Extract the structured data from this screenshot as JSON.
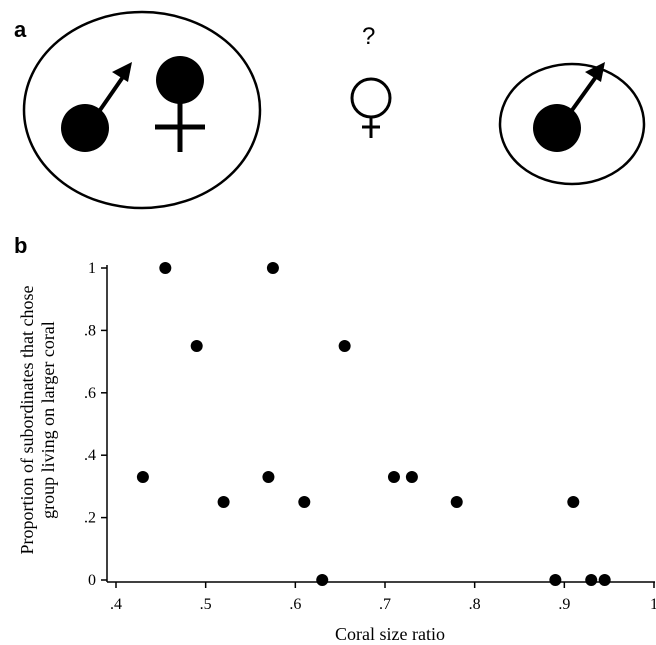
{
  "panel_a": {
    "label": "a",
    "question_mark": "?",
    "left_group": [
      "male-symbol",
      "female-symbol"
    ],
    "center": [
      "female-symbol"
    ],
    "right_group": [
      "male-symbol"
    ]
  },
  "panel_b": {
    "label": "b"
  },
  "chart_data": {
    "type": "scatter",
    "title": "",
    "xlabel": "Coral size ratio",
    "ylabel": "Proportion of subordinates that chose group living on larger coral",
    "ylabel_lines": [
      "Proportion of subordinates that chose",
      "group living on larger coral"
    ],
    "xlim": [
      0.4,
      1.0
    ],
    "ylim": [
      0,
      1
    ],
    "xticks": [
      {
        "v": 0.4,
        "label": ".4"
      },
      {
        "v": 0.5,
        "label": ".5"
      },
      {
        "v": 0.6,
        "label": ".6"
      },
      {
        "v": 0.7,
        "label": ".7"
      },
      {
        "v": 0.8,
        "label": ".8"
      },
      {
        "v": 0.9,
        "label": ".9"
      },
      {
        "v": 1.0,
        "label": "1"
      }
    ],
    "yticks": [
      {
        "v": 0,
        "label": "0"
      },
      {
        "v": 0.2,
        "label": ".2"
      },
      {
        "v": 0.4,
        "label": ".4"
      },
      {
        "v": 0.6,
        "label": ".6"
      },
      {
        "v": 0.8,
        "label": ".8"
      },
      {
        "v": 1.0,
        "label": "1"
      }
    ],
    "grid": false,
    "points": [
      {
        "x": 0.43,
        "y": 0.33
      },
      {
        "x": 0.455,
        "y": 1.0
      },
      {
        "x": 0.49,
        "y": 0.75
      },
      {
        "x": 0.52,
        "y": 0.25
      },
      {
        "x": 0.57,
        "y": 0.33
      },
      {
        "x": 0.575,
        "y": 1.0
      },
      {
        "x": 0.61,
        "y": 0.25
      },
      {
        "x": 0.63,
        "y": 0.0
      },
      {
        "x": 0.655,
        "y": 0.75
      },
      {
        "x": 0.71,
        "y": 0.33
      },
      {
        "x": 0.73,
        "y": 0.33
      },
      {
        "x": 0.78,
        "y": 0.25
      },
      {
        "x": 0.89,
        "y": 0.0
      },
      {
        "x": 0.91,
        "y": 0.25
      },
      {
        "x": 0.93,
        "y": 0.0
      },
      {
        "x": 0.945,
        "y": 0.0
      }
    ]
  }
}
